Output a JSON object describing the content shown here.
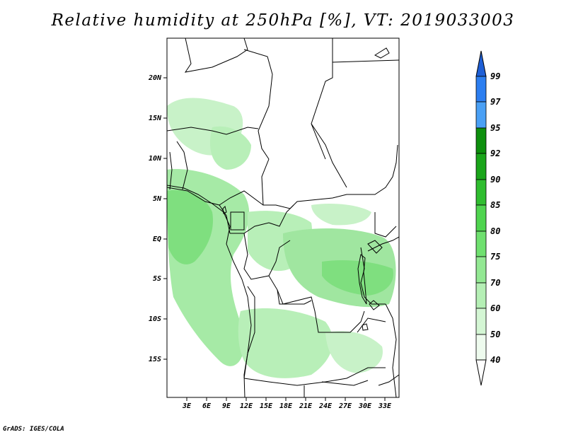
{
  "title": "Relative humidity at 250hPa [%], VT: 2019033003",
  "credit": "GrADS: IGES/COLA",
  "map": {
    "lat_ticks": [
      "20N",
      "15N",
      "10N",
      "5N",
      "EQ",
      "5S",
      "10S",
      "15S"
    ],
    "lon_ticks": [
      "3E",
      "6E",
      "9E",
      "12E",
      "15E",
      "18E",
      "21E",
      "24E",
      "27E",
      "30E",
      "33E"
    ]
  },
  "colorbar": {
    "labels": [
      "99",
      "97",
      "95",
      "92",
      "90",
      "85",
      "80",
      "75",
      "70",
      "60",
      "50",
      "40"
    ],
    "colors": [
      "#1e5fd6",
      "#2c7ef0",
      "#4aa0f5",
      "#0d8f0d",
      "#1aa51a",
      "#2fbd2f",
      "#4fd44f",
      "#6fe06f",
      "#93e893",
      "#b5efb5",
      "#d4f6d4",
      "#eefbee"
    ]
  }
}
